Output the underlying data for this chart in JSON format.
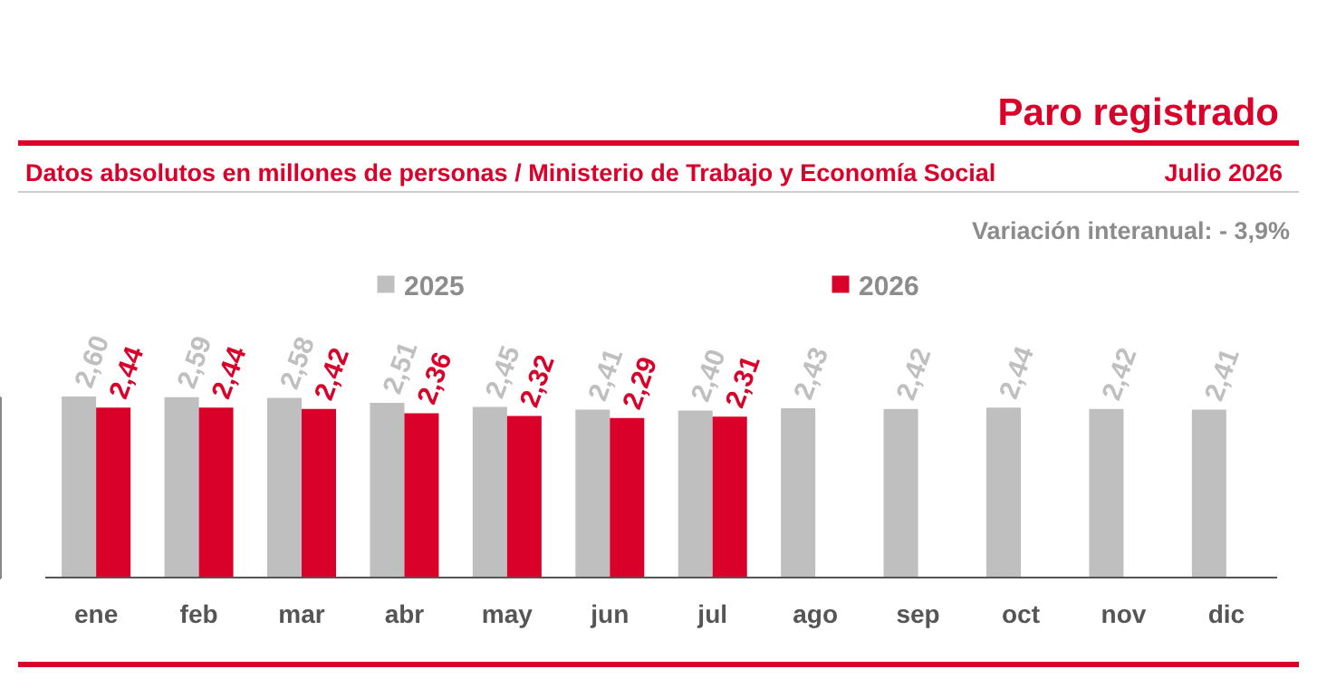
{
  "chart_data": {
    "type": "bar",
    "title": "Paro registrado",
    "subtitle": "Datos absolutos en millones de personas / Ministerio de Trabajo y Economía Social",
    "annotations": [
      "Julio 2026",
      "Variación interanual: - 3,9%"
    ],
    "categories": [
      "ene",
      "feb",
      "mar",
      "abr",
      "may",
      "jun",
      "jul",
      "ago",
      "sep",
      "oct",
      "nov",
      "dic"
    ],
    "legend": "top",
    "series": [
      {
        "name": "2025",
        "color": "#bfbfbf",
        "values": [
          2.6,
          2.59,
          2.58,
          2.51,
          2.45,
          2.41,
          2.4,
          2.43,
          2.42,
          2.44,
          2.42,
          2.41
        ],
        "value_labels": [
          "2,60",
          "2,59",
          "2,58",
          "2,51",
          "2,45",
          "2,41",
          "2,40",
          "2,43",
          "2,42",
          "2,44",
          "2,42",
          "2,41"
        ]
      },
      {
        "name": "2026",
        "color": "#d9002a",
        "values": [
          2.44,
          2.44,
          2.42,
          2.36,
          2.32,
          2.29,
          2.31,
          null,
          null,
          null,
          null,
          null
        ],
        "value_labels": [
          "2,44",
          "2,44",
          "2,42",
          "2,36",
          "2,32",
          "2,29",
          "2,31",
          null,
          null,
          null,
          null,
          null
        ]
      }
    ]
  }
}
